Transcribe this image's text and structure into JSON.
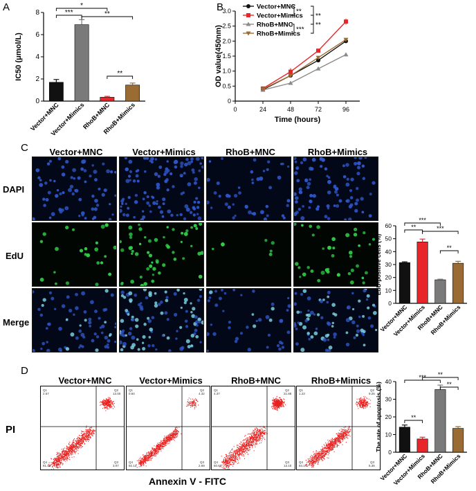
{
  "panels": {
    "a": "A",
    "b": "B",
    "c": "C",
    "d": "D"
  },
  "groups": [
    "Vector+MNC",
    "Vector+Mimics",
    "RhoB+MNC",
    "RhoB+Mimics"
  ],
  "colors": {
    "black": "#111111",
    "gray": "#7a7a7a",
    "red": "#e8262a",
    "brown": "#9a6b32",
    "dapi": "#1b3a8c",
    "edu": "#2fd04a",
    "facs": "#e8211f"
  },
  "panel_c": {
    "rows": [
      "DAPI",
      "EdU",
      "Merge"
    ]
  },
  "panel_d": {
    "y_label": "PI",
    "x_label": "Annexin V - FITC",
    "quadrants": [
      {
        "q1": "Q1",
        "q2": "Q2",
        "q3": "Q3",
        "q4": "Q4",
        "v1": "2.67",
        "v2": "13.00",
        "v3": "3.07",
        "v4": "81.46"
      },
      {
        "q1": "Q1",
        "q2": "Q2",
        "q3": "Q3",
        "q4": "Q4",
        "v1": "0.84",
        "v2": "4.32",
        "v3": "2.69",
        "v4": "92.13"
      },
      {
        "q1": "Q1",
        "q2": "Q2",
        "q3": "Q3",
        "q4": "Q4",
        "v1": "4.37",
        "v2": "21.88",
        "v3": "13.10",
        "v4": "60.65"
      },
      {
        "q1": "Q1",
        "q2": "Q2",
        "q3": "Q3",
        "q4": "Q4",
        "v1": "1.23",
        "v2": "9.25",
        "v3": "5.35",
        "v4": "84.17"
      }
    ]
  },
  "chart_data": [
    {
      "id": "A",
      "type": "bar",
      "categories": [
        "Vector+MNC",
        "Vector+Mimics",
        "RhoB+MNC",
        "RhoB+Mimics"
      ],
      "values": [
        1.7,
        6.9,
        0.35,
        1.45
      ],
      "errors": [
        0.25,
        0.45,
        0.08,
        0.18
      ],
      "ylabel": "IC50 (μmol/L)",
      "ylim": [
        0,
        8
      ],
      "yticks": [
        0,
        2,
        4,
        6,
        8
      ],
      "colors": [
        "#111111",
        "#7a7a7a",
        "#e8262a",
        "#9a6b32"
      ],
      "significance": [
        {
          "from": 0,
          "to": 1,
          "label": "***"
        },
        {
          "from": 0,
          "to": 2,
          "label": "*"
        },
        {
          "from": 1,
          "to": 3,
          "label": "**"
        },
        {
          "from": 2,
          "to": 3,
          "label": "**"
        }
      ]
    },
    {
      "id": "B",
      "type": "line",
      "x": [
        24,
        48,
        72,
        96
      ],
      "xticks": [
        0,
        24,
        48,
        72,
        96
      ],
      "xlabel": "Time (hours)",
      "ylabel": "OD value(450nm)",
      "ylim": [
        0,
        3.0
      ],
      "yticks": [
        "0",
        "0.5",
        "1.0",
        "1.5",
        "2.0",
        "2.5",
        "3.0"
      ],
      "series": [
        {
          "name": "Vector+MNC",
          "color": "#111111",
          "marker": "circle",
          "values": [
            0.38,
            0.85,
            1.36,
            2.0
          ],
          "errors": [
            0.03,
            0.05,
            0.06,
            0.05
          ]
        },
        {
          "name": "Vector+Mimics",
          "color": "#e8262a",
          "marker": "square",
          "values": [
            0.42,
            0.98,
            1.68,
            2.65
          ],
          "errors": [
            0.03,
            0.12,
            0.05,
            0.1
          ]
        },
        {
          "name": "RhoB+MNC",
          "color": "#8a8a8a",
          "marker": "triangle-up",
          "values": [
            0.37,
            0.6,
            1.08,
            1.55
          ],
          "errors": [
            0.03,
            0.04,
            0.05,
            0.06
          ]
        },
        {
          "name": "RhoB+Mimics",
          "color": "#9a6b32",
          "marker": "triangle-down",
          "values": [
            0.4,
            0.85,
            1.45,
            2.05
          ],
          "errors": [
            0.03,
            0.05,
            0.05,
            0.05
          ]
        }
      ],
      "significance": [
        {
          "pair": [
            0,
            1
          ],
          "label": "**"
        },
        {
          "pair": [
            2,
            3
          ],
          "label": "***"
        },
        {
          "pair": [
            0,
            2
          ],
          "label": "**"
        },
        {
          "pair": [
            1,
            3
          ],
          "label": "**"
        }
      ]
    },
    {
      "id": "C",
      "type": "bar",
      "categories": [
        "Vector+MNC",
        "Vector+Mimics",
        "RhoB+MNC",
        "RhoB+Mimics"
      ],
      "values": [
        31.5,
        47.5,
        18.2,
        31.0
      ],
      "errors": [
        0.6,
        2.2,
        0.5,
        1.5
      ],
      "ylabel": "EdU-positive cells (%)",
      "ylim": [
        0,
        60
      ],
      "yticks": [
        0,
        10,
        20,
        30,
        40,
        50,
        60
      ],
      "colors": [
        "#111111",
        "#e8262a",
        "#7a7a7a",
        "#9a6b32"
      ],
      "significance": [
        {
          "from": 0,
          "to": 1,
          "label": "**"
        },
        {
          "from": 0,
          "to": 2,
          "label": "***"
        },
        {
          "from": 1,
          "to": 3,
          "label": "***"
        },
        {
          "from": 2,
          "to": 3,
          "label": "**"
        }
      ]
    },
    {
      "id": "D",
      "type": "bar",
      "categories": [
        "Vector+MNC",
        "Vector+Mimics",
        "RhoB+MNC",
        "RhoB+Mimics"
      ],
      "values": [
        14.2,
        7.5,
        35.5,
        13.5
      ],
      "errors": [
        1.2,
        1.0,
        2.5,
        1.0
      ],
      "ylabel": "The rate of apoptosis (%)",
      "ylim": [
        0,
        40
      ],
      "yticks": [
        0,
        10,
        20,
        30,
        40
      ],
      "colors": [
        "#111111",
        "#e8262a",
        "#7a7a7a",
        "#9a6b32"
      ],
      "significance": [
        {
          "from": 0,
          "to": 1,
          "label": "**"
        },
        {
          "from": 0,
          "to": 2,
          "label": "***"
        },
        {
          "from": 1,
          "to": 3,
          "label": "**"
        },
        {
          "from": 2,
          "to": 3,
          "label": "**"
        }
      ]
    }
  ]
}
